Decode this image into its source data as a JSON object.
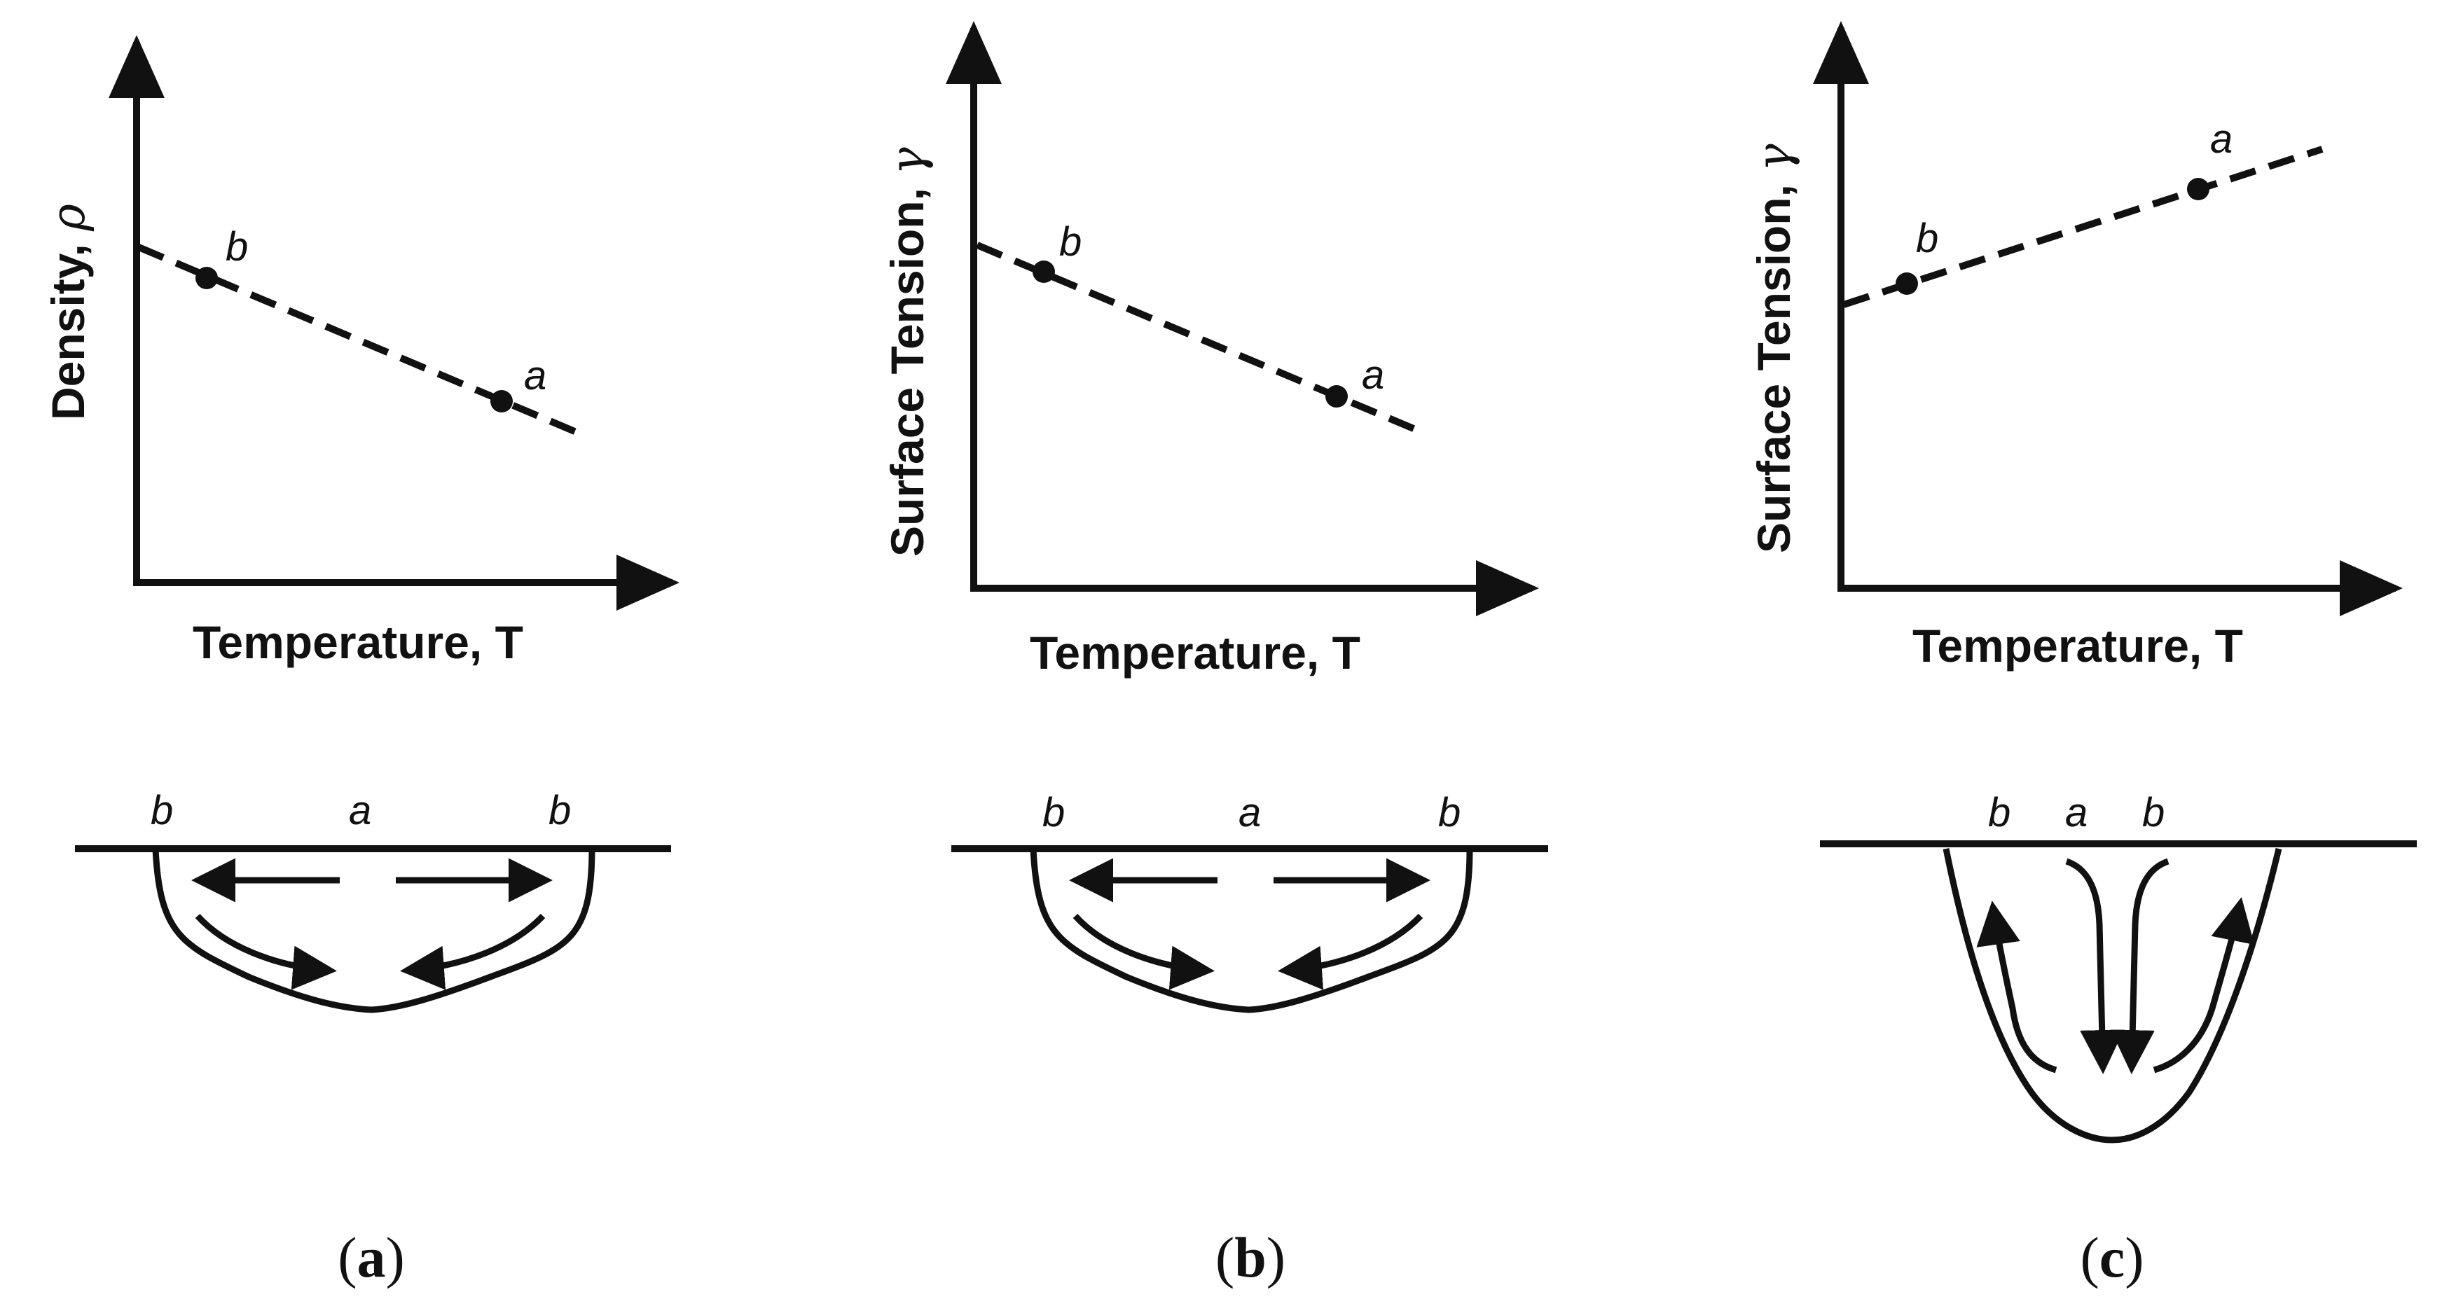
{
  "panels": [
    {
      "caption_letter": "a",
      "chart": {
        "y_label": "Density, ",
        "y_symbol": "ρ",
        "x_label": "Temperature, T",
        "trend": "decreasing",
        "points": [
          {
            "label": "b"
          },
          {
            "label": "a"
          }
        ]
      },
      "melt_pool": {
        "labels": [
          "b",
          "a",
          "b"
        ],
        "flow": "outward at surface, circulating down and inward"
      }
    },
    {
      "caption_letter": "b",
      "chart": {
        "y_label": "Surface Tension, ",
        "y_symbol": "γ",
        "x_label": "Temperature, T",
        "trend": "decreasing",
        "points": [
          {
            "label": "b"
          },
          {
            "label": "a"
          }
        ]
      },
      "melt_pool": {
        "labels": [
          "b",
          "a",
          "b"
        ],
        "flow": "outward at surface, circulating down and inward"
      }
    },
    {
      "caption_letter": "c",
      "chart": {
        "y_label": "Surface Tension, ",
        "y_symbol": "γ",
        "x_label": "Temperature, T",
        "trend": "increasing",
        "points": [
          {
            "label": "b"
          },
          {
            "label": "a"
          }
        ]
      },
      "melt_pool": {
        "labels": [
          "b",
          "a",
          "b"
        ],
        "flow": "inward at surface, downward at center, rising along walls"
      }
    }
  ],
  "caption_open": "(",
  "caption_close": ")"
}
